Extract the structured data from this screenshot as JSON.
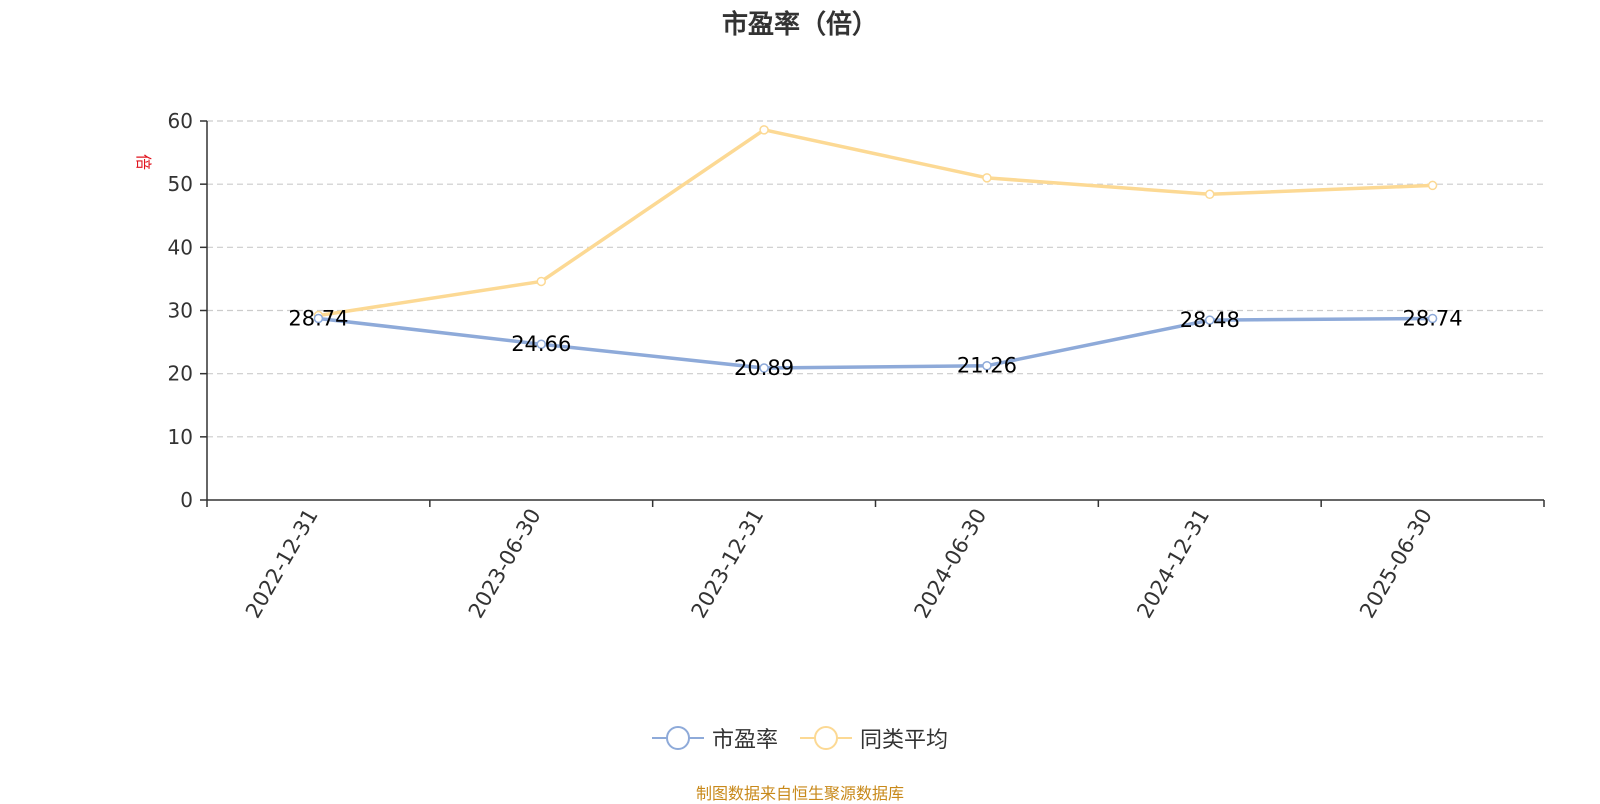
{
  "chart_data": {
    "type": "line",
    "title": "市盈率（倍）",
    "ylabel": "倍",
    "categories": [
      "2022-12-31",
      "2023-06-30",
      "2023-12-31",
      "2024-06-30",
      "2024-12-31",
      "2025-06-30"
    ],
    "ylim": [
      0,
      60
    ],
    "yticks": [
      0,
      10,
      20,
      30,
      40,
      50,
      60
    ],
    "grid": true,
    "legend_position": "bottom",
    "series": [
      {
        "name": "市盈率",
        "color": "#8eaad9",
        "values": [
          28.74,
          24.66,
          20.89,
          21.26,
          28.48,
          28.74
        ],
        "show_labels": true
      },
      {
        "name": "同类平均",
        "color": "#fcd994",
        "values": [
          29.2,
          34.6,
          58.6,
          51.0,
          48.4,
          49.8
        ],
        "show_labels": false
      }
    ]
  },
  "footer": {
    "source": "制图数据来自恒生聚源数据库"
  }
}
